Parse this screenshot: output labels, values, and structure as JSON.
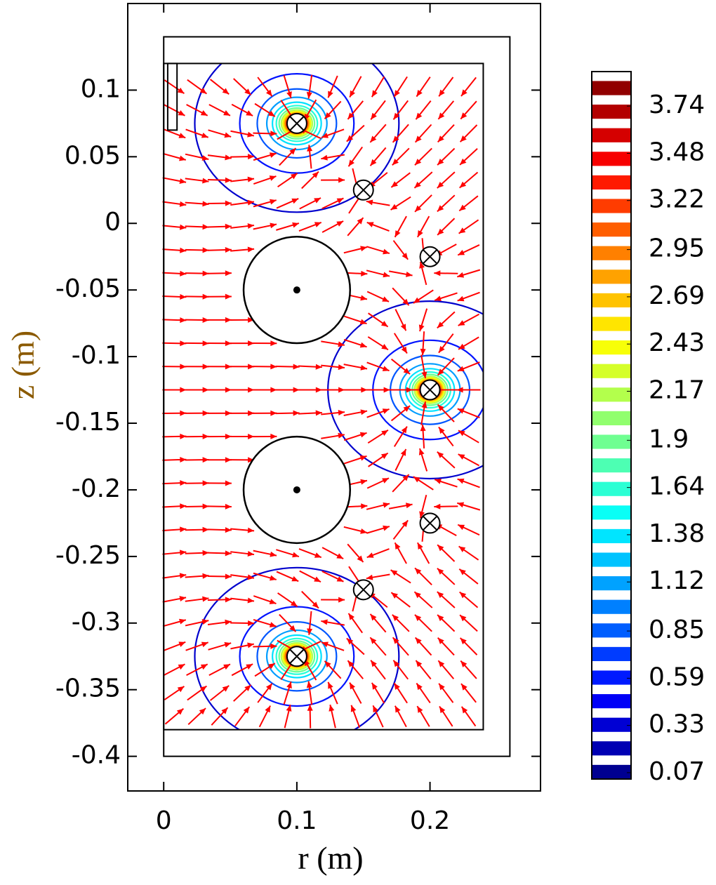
{
  "chart_data": {
    "type": "contour",
    "x_label": "r (m)",
    "y_label": "z (m)",
    "xlim": [
      -0.027,
      0.283
    ],
    "ylim": [
      -0.426,
      0.165
    ],
    "xticks": [
      0,
      0.1,
      0.2
    ],
    "yticks": [
      0.1,
      0.05,
      0,
      -0.05,
      -0.1,
      -0.15,
      -0.2,
      -0.25,
      -0.3,
      -0.35,
      -0.4
    ],
    "colormap": "jet",
    "clim": [
      0.035,
      3.93
    ],
    "colorbar_ticks": [
      0.07,
      0.33,
      0.59,
      0.85,
      1.12,
      1.38,
      1.64,
      1.9,
      2.17,
      2.43,
      2.69,
      2.95,
      3.22,
      3.48,
      3.74
    ],
    "contour_color_levels": [
      0.33,
      0.59,
      0.85,
      1.12,
      1.38,
      1.64,
      1.9,
      2.17,
      2.43,
      2.69,
      2.95,
      3.22,
      3.48,
      3.74
    ],
    "outer_box": {
      "r": [
        0,
        0.26
      ],
      "z": [
        -0.4,
        0.14
      ]
    },
    "domain": {
      "r": [
        0,
        0.24
      ],
      "z": [
        -0.38,
        0.12
      ]
    },
    "probe": {
      "r": [
        0.003,
        0.01
      ],
      "z": [
        0.07,
        0.12
      ]
    },
    "arrow_color": "#ff0000",
    "coils": {
      "r": [
        0.1,
        0.15,
        0.2,
        0.2,
        0.2,
        0.15,
        0.1
      ],
      "z": [
        0.075,
        0.025,
        -0.025,
        -0.125,
        -0.225,
        -0.275,
        -0.325
      ],
      "strong": [
        true,
        false,
        false,
        true,
        false,
        false,
        true
      ]
    },
    "rods": {
      "r": [
        0.1,
        0.1
      ],
      "z": [
        -0.05,
        -0.2
      ],
      "radius": [
        0.04,
        0.04
      ]
    }
  }
}
